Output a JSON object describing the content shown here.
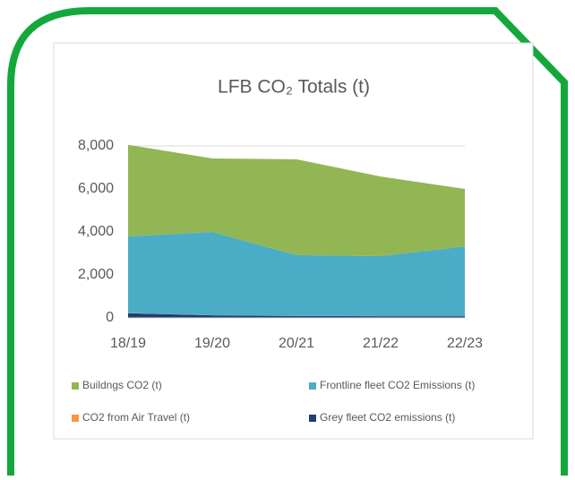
{
  "chart_data": {
    "type": "area",
    "stacked": true,
    "title": "LFB CO₂ Totals (t)",
    "categories": [
      "18/19",
      "19/20",
      "20/21",
      "21/22",
      "22/23"
    ],
    "series": [
      {
        "name": "Buildngs CO2 (t)",
        "color": "#92b654",
        "values": [
          4260,
          3420,
          4460,
          3705,
          2670
        ]
      },
      {
        "name": "Frontline fleet CO2 Emissions (t)",
        "color": "#4bacc6",
        "values": [
          3560,
          3875,
          2828,
          2793,
          3247
        ]
      },
      {
        "name": "CO2 from Air Travel (t)",
        "color": "#f79646",
        "values": [
          10,
          5,
          2,
          2,
          3
        ]
      },
      {
        "name": "Grey fleet CO2 emissions (t)",
        "color": "#1f3f6e",
        "values": [
          220,
          120,
          90,
          80,
          80
        ]
      }
    ],
    "ylim": [
      0,
      8000
    ],
    "yticks": [
      0,
      {
        "value": 2000,
        "label": "2,000"
      },
      {
        "value": 4000,
        "label": "4,000"
      },
      {
        "value": 6000,
        "label": "6,000"
      },
      {
        "value": 8000,
        "label": "8,000"
      }
    ],
    "grid": true,
    "legend": "bottom"
  }
}
